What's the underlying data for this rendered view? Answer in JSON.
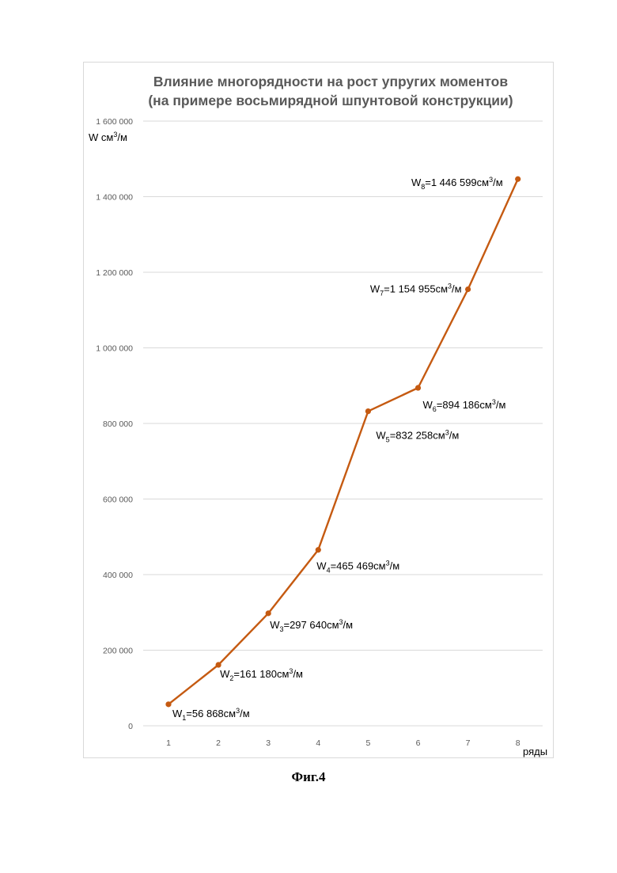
{
  "chart_data": {
    "type": "line",
    "title_lines": [
      "Влияние многорядности на рост упругих моментов",
      "(на примере восьмирядной шпунтовой конструкции)"
    ],
    "ylabel": {
      "base": "W см",
      "sup": "3",
      "tail": "/м"
    },
    "xlabel": "ряды",
    "x": [
      1,
      2,
      3,
      4,
      5,
      6,
      7,
      8
    ],
    "values": [
      56868,
      161180,
      297640,
      465469,
      832258,
      894186,
      1154955,
      1446599
    ],
    "ylim": [
      0,
      1600000
    ],
    "y_ticks": [
      0,
      200000,
      400000,
      600000,
      800000,
      1000000,
      1200000,
      1400000,
      1600000
    ],
    "y_tick_labels": [
      "0",
      "200 000",
      "400 000",
      "600 000",
      "800 000",
      "1 000 000",
      "1 200 000",
      "1 400 000",
      "1 600 000"
    ],
    "x_tick_labels": [
      "1",
      "2",
      "3",
      "4",
      "5",
      "6",
      "7",
      "8"
    ],
    "grid": true,
    "line_color": "#c55a11",
    "data_labels": [
      {
        "w": "W",
        "sub": "1",
        "value": "=56 868см",
        "sup": "3",
        "tail": "/м"
      },
      {
        "w": "W",
        "sub": "2",
        "value": "=161 180см",
        "sup": "3",
        "tail": "/м"
      },
      {
        "w": "W",
        "sub": "3",
        "value": "=297 640см",
        "sup": "3",
        "tail": "/м"
      },
      {
        "w": "W",
        "sub": "4",
        "value": "=465 469см",
        "sup": "3",
        "tail": "/м"
      },
      {
        "w": "W",
        "sub": "5",
        "value": "=832 258см",
        "sup": "3",
        "tail": "/м"
      },
      {
        "w": "W",
        "sub": "6",
        "value": "=894 186см",
        "sup": "3",
        "tail": "/м"
      },
      {
        "w": "W",
        "sub": "7",
        "value": "=1 154 955см",
        "sup": "3",
        "tail": "/м"
      },
      {
        "w": "W",
        "sub": "8",
        "value": "=1 446 599см",
        "sup": "3",
        "tail": "/м"
      }
    ]
  },
  "caption": "Фиг.4"
}
